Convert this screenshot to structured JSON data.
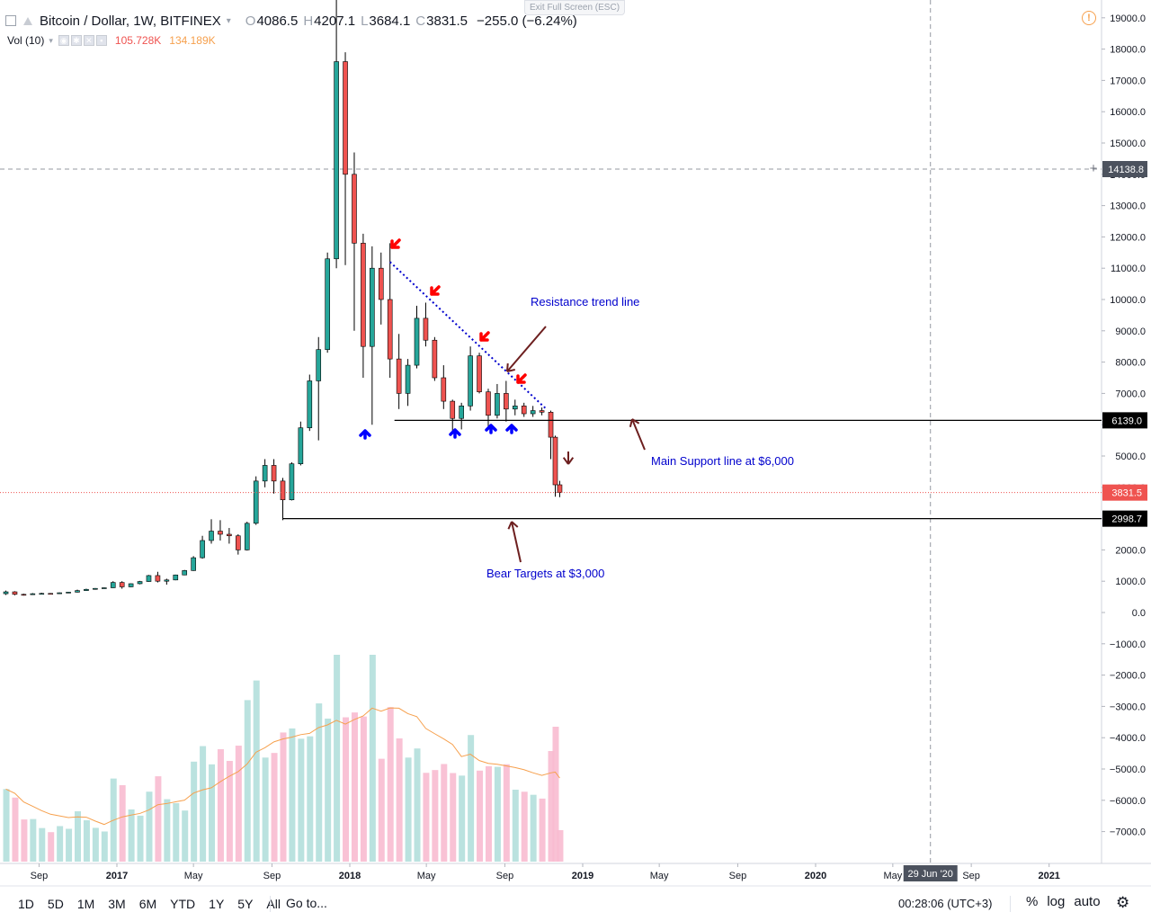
{
  "header": {
    "symbol": "Bitcoin / Dollar, 1W, BITFINEX",
    "open_label": "O",
    "open": "4086.5",
    "high_label": "H",
    "high": "4207.1",
    "low_label": "L",
    "low": "3684.1",
    "close_label": "C",
    "close": "3831.5",
    "change": "−255.0 (−6.24%)"
  },
  "volume_indicator": {
    "label": "Vol (10)",
    "value": "105.728K",
    "ma_value": "134.189K"
  },
  "exit_fullscreen": "Exit Full Screen (ESC)",
  "crosshair": {
    "price_tag": "14138.8",
    "date_tag": "29 Jun '20"
  },
  "annotations": {
    "resistance": "Resistance trend line",
    "support": "Main Support line at $6,000",
    "bear": "Bear Targets at $3,000"
  },
  "toolbar": {
    "periods": [
      "1D",
      "5D",
      "1M",
      "3M",
      "6M",
      "YTD",
      "1Y",
      "5Y",
      "All"
    ],
    "goto": "Go to...",
    "clock": "00:28:06 (UTC+3)",
    "percent": "%",
    "log": "log",
    "auto": "auto"
  },
  "colors": {
    "up": "#26a69a",
    "down": "#ef5350",
    "trend": "#0000cd",
    "text_blue": "#0000cd",
    "arrow": "#6d1f1f",
    "ma": "#f6a04d"
  },
  "chart_data": {
    "type": "candlestick",
    "title": "Bitcoin / Dollar, 1W, BITFINEX",
    "y_axis_ticks": [
      "19000.0",
      "18000.0",
      "17000.0",
      "16000.0",
      "15000.0",
      "14000.0",
      "13000.0",
      "12000.0",
      "11000.0",
      "10000.0",
      "9000.0",
      "8000.0",
      "7000.0",
      "6000.0",
      "5000.0",
      "4000.0",
      "3000.0",
      "2000.0",
      "1000.0",
      "0.0",
      "−1000.0",
      "−2000.0",
      "−3000.0",
      "−4000.0",
      "−5000.0",
      "−6000.0",
      "−7000.0"
    ],
    "ylim": [
      -7700,
      19600
    ],
    "x_axis_ticks": [
      "Sep",
      "2017",
      "May",
      "Sep",
      "2018",
      "May",
      "Sep",
      "2019",
      "May",
      "Sep",
      "2020",
      "May",
      "Sep",
      "2021"
    ],
    "price_labels": [
      {
        "value": 6139.0,
        "text": "6139.0",
        "style": "black"
      },
      {
        "value": 3831.5,
        "text": "3831.5",
        "style": "red"
      },
      {
        "value": 2998.7,
        "text": "2998.7",
        "style": "black"
      }
    ],
    "horizontal_lines": [
      {
        "name": "support",
        "value": 6139.0
      },
      {
        "name": "bear-target",
        "value": 2998.7
      }
    ],
    "trend_line": {
      "from": [
        "2018-03-05",
        11200
      ],
      "to": [
        "2018-11-05",
        6500
      ]
    },
    "candles": [
      [
        "2016-07-11",
        600,
        700,
        560,
        660
      ],
      [
        "2016-07-25",
        660,
        680,
        550,
        580
      ],
      [
        "2016-08-08",
        580,
        600,
        540,
        570
      ],
      [
        "2016-08-22",
        570,
        620,
        560,
        600
      ],
      [
        "2016-09-05",
        600,
        630,
        590,
        610
      ],
      [
        "2016-09-19",
        610,
        620,
        590,
        600
      ],
      [
        "2016-10-03",
        600,
        640,
        595,
        630
      ],
      [
        "2016-10-17",
        630,
        660,
        620,
        650
      ],
      [
        "2016-10-31",
        650,
        730,
        640,
        700
      ],
      [
        "2016-11-14",
        700,
        760,
        690,
        740
      ],
      [
        "2016-11-28",
        740,
        780,
        730,
        770
      ],
      [
        "2016-12-12",
        770,
        800,
        760,
        790
      ],
      [
        "2016-12-26",
        790,
        1000,
        780,
        960
      ],
      [
        "2017-01-09",
        960,
        1000,
        760,
        820
      ],
      [
        "2017-01-23",
        820,
        930,
        810,
        920
      ],
      [
        "2017-02-06",
        920,
        1010,
        900,
        990
      ],
      [
        "2017-02-20",
        990,
        1200,
        980,
        1180
      ],
      [
        "2017-03-06",
        1180,
        1300,
        960,
        1000
      ],
      [
        "2017-03-20",
        1000,
        1080,
        890,
        1040
      ],
      [
        "2017-04-03",
        1040,
        1210,
        1030,
        1200
      ],
      [
        "2017-04-17",
        1200,
        1360,
        1190,
        1340
      ],
      [
        "2017-05-01",
        1340,
        1800,
        1330,
        1750
      ],
      [
        "2017-05-15",
        1750,
        2450,
        1720,
        2300
      ],
      [
        "2017-05-29",
        2300,
        2980,
        2200,
        2600
      ],
      [
        "2017-06-12",
        2600,
        2950,
        2300,
        2500
      ],
      [
        "2017-06-26",
        2500,
        2700,
        2200,
        2450
      ],
      [
        "2017-07-10",
        2450,
        2500,
        1850,
        2000
      ],
      [
        "2017-07-24",
        2000,
        2900,
        1980,
        2850
      ],
      [
        "2017-08-07",
        2850,
        4350,
        2800,
        4200
      ],
      [
        "2017-08-21",
        4200,
        4900,
        4000,
        4700
      ],
      [
        "2017-09-04",
        4700,
        4900,
        3800,
        4200
      ],
      [
        "2017-09-18",
        4200,
        4300,
        2950,
        3600
      ],
      [
        "2017-10-02",
        3600,
        4800,
        3580,
        4750
      ],
      [
        "2017-10-16",
        4750,
        6100,
        4700,
        5900
      ],
      [
        "2017-10-30",
        5900,
        7600,
        5800,
        7400
      ],
      [
        "2017-11-13",
        7400,
        8800,
        5500,
        8400
      ],
      [
        "2017-11-27",
        8400,
        11500,
        8300,
        11300
      ],
      [
        "2017-12-11",
        11300,
        19600,
        11000,
        17600
      ],
      [
        "2017-12-25",
        17600,
        17900,
        11100,
        14000
      ],
      [
        "2018-01-08",
        14000,
        14700,
        9000,
        11800
      ],
      [
        "2018-01-22",
        11800,
        12100,
        7500,
        8500
      ],
      [
        "2018-02-05",
        8500,
        11700,
        6000,
        11000
      ],
      [
        "2018-02-19",
        11000,
        11500,
        9200,
        10000
      ],
      [
        "2018-03-05",
        10000,
        11800,
        7500,
        8100
      ],
      [
        "2018-03-19",
        8100,
        8900,
        6500,
        7000
      ],
      [
        "2018-04-02",
        7000,
        8100,
        6600,
        7900
      ],
      [
        "2018-04-16",
        7900,
        9800,
        7800,
        9400
      ],
      [
        "2018-04-30",
        9400,
        9900,
        8500,
        8700
      ],
      [
        "2018-05-14",
        8700,
        8800,
        7400,
        7500
      ],
      [
        "2018-05-28",
        7500,
        7900,
        6500,
        6750
      ],
      [
        "2018-06-11",
        6750,
        6800,
        5800,
        6200
      ],
      [
        "2018-06-25",
        6200,
        6700,
        5850,
        6600
      ],
      [
        "2018-07-09",
        6600,
        8500,
        6450,
        8200
      ],
      [
        "2018-07-23",
        8200,
        8300,
        7000,
        7050
      ],
      [
        "2018-08-06",
        7050,
        7150,
        5900,
        6300
      ],
      [
        "2018-08-20",
        6300,
        7300,
        6200,
        7000
      ],
      [
        "2018-09-03",
        7000,
        7400,
        6100,
        6500
      ],
      [
        "2018-09-17",
        6500,
        6800,
        6300,
        6600
      ],
      [
        "2018-10-01",
        6600,
        6700,
        6250,
        6350
      ],
      [
        "2018-10-15",
        6350,
        6600,
        6250,
        6450
      ],
      [
        "2018-10-29",
        6450,
        6550,
        6300,
        6400
      ],
      [
        "2018-11-12",
        6400,
        6450,
        4900,
        5600
      ],
      [
        "2018-11-19",
        5600,
        5650,
        3700,
        4080
      ],
      [
        "2018-11-26",
        4080,
        4207,
        3684,
        3832
      ]
    ],
    "volume_bars": "weekly volume histogram with 10-period MA (orange line)"
  }
}
